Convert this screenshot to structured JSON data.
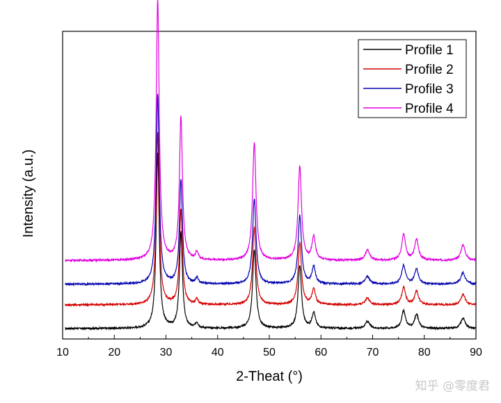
{
  "chart_data": {
    "type": "line",
    "title": "",
    "xlabel": "2-Theat (°)",
    "ylabel": "Intensity (a.u.)",
    "xlim": [
      10,
      90
    ],
    "x_ticks": [
      10,
      20,
      30,
      40,
      50,
      60,
      70,
      80,
      90
    ],
    "y_ticks": [],
    "grid": false,
    "legend_position": "top-right",
    "peaks": [
      {
        "two_theta": 28.4,
        "rel_intensity": 1.0,
        "width": 0.35
      },
      {
        "two_theta": 32.9,
        "rel_intensity": 0.55,
        "width": 0.35
      },
      {
        "two_theta": 36.0,
        "rel_intensity": 0.03,
        "width": 0.3
      },
      {
        "two_theta": 47.1,
        "rel_intensity": 0.45,
        "width": 0.4
      },
      {
        "two_theta": 55.9,
        "rel_intensity": 0.36,
        "width": 0.4
      },
      {
        "two_theta": 58.6,
        "rel_intensity": 0.09,
        "width": 0.4
      },
      {
        "two_theta": 69.0,
        "rel_intensity": 0.04,
        "width": 0.5
      },
      {
        "two_theta": 76.0,
        "rel_intensity": 0.1,
        "width": 0.45
      },
      {
        "two_theta": 78.5,
        "rel_intensity": 0.08,
        "width": 0.45
      },
      {
        "two_theta": 87.5,
        "rel_intensity": 0.06,
        "width": 0.5
      }
    ],
    "series": [
      {
        "name": "Profile 1",
        "color": "#000000",
        "baseline": 0.0,
        "peak_scale": 0.59
      },
      {
        "name": "Profile 2",
        "color": "#d40000",
        "baseline": 0.08,
        "peak_scale": 0.58
      },
      {
        "name": "Profile 3",
        "color": "#0000b0",
        "baseline": 0.15,
        "peak_scale": 0.64
      },
      {
        "name": "Profile 4",
        "color": "#e000e0",
        "baseline": 0.23,
        "peak_scale": 0.88
      }
    ]
  },
  "watermark": "知乎 @零度君"
}
